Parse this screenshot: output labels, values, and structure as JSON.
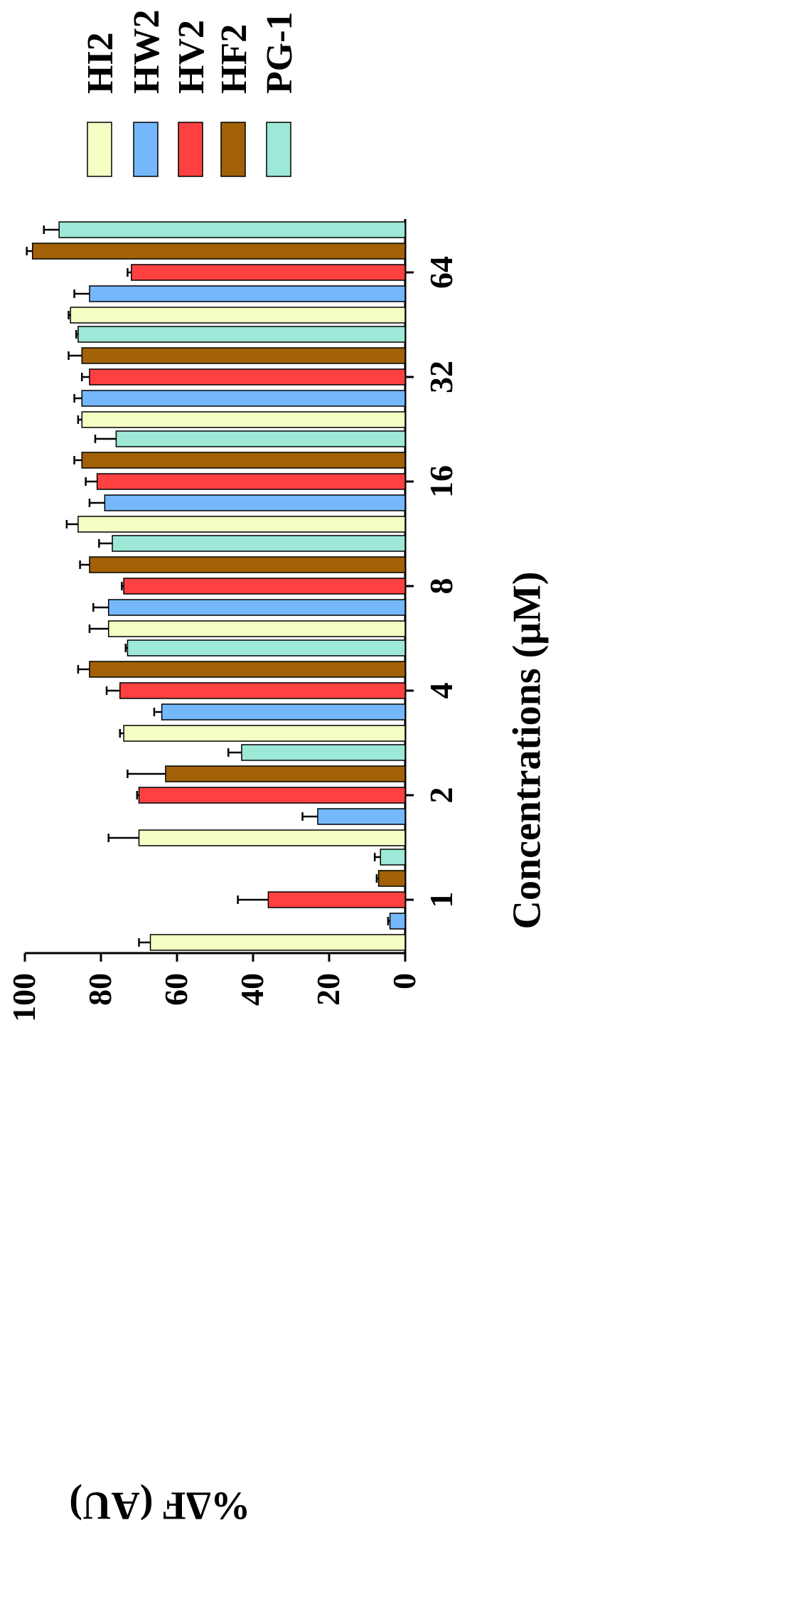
{
  "chart_data": {
    "type": "bar",
    "orientation": "rotated-90",
    "xlabel": "Concentrations (μM)",
    "ylabel": "%ΔF (AU)",
    "categories": [
      "1",
      "2",
      "4",
      "8",
      "16",
      "32",
      "64"
    ],
    "ylim": [
      0,
      100
    ],
    "yticks": [
      "0",
      "20",
      "40",
      "60",
      "80",
      "100"
    ],
    "legend_position": "top-right",
    "series": [
      {
        "name": "HI2",
        "color": "#f5ffc4",
        "values": [
          67,
          70,
          74,
          78,
          86,
          85,
          88
        ],
        "errors": [
          3,
          8,
          1,
          5,
          3,
          1,
          0.5
        ]
      },
      {
        "name": "HW2",
        "color": "#74b8fb",
        "values": [
          4,
          23,
          64,
          78,
          79,
          85,
          83
        ],
        "errors": [
          0.5,
          4,
          2,
          4,
          4,
          2,
          4
        ]
      },
      {
        "name": "HV2",
        "color": "#ff4040",
        "values": [
          36,
          70,
          75,
          74,
          81,
          83,
          72
        ],
        "errors": [
          8,
          0.5,
          3.5,
          0.5,
          3,
          2,
          1
        ]
      },
      {
        "name": "HF2",
        "color": "#a26106",
        "values": [
          7,
          63,
          83,
          83,
          85,
          85,
          98
        ],
        "errors": [
          0.5,
          10,
          3,
          2.5,
          2,
          3.5,
          1.5
        ]
      },
      {
        "name": "PG-1",
        "color": "#9de8d6",
        "values": [
          6.5,
          43,
          73,
          77,
          76,
          86,
          91
        ],
        "errors": [
          1.5,
          3.5,
          0.5,
          3.5,
          5.5,
          0.5,
          4
        ]
      }
    ]
  }
}
